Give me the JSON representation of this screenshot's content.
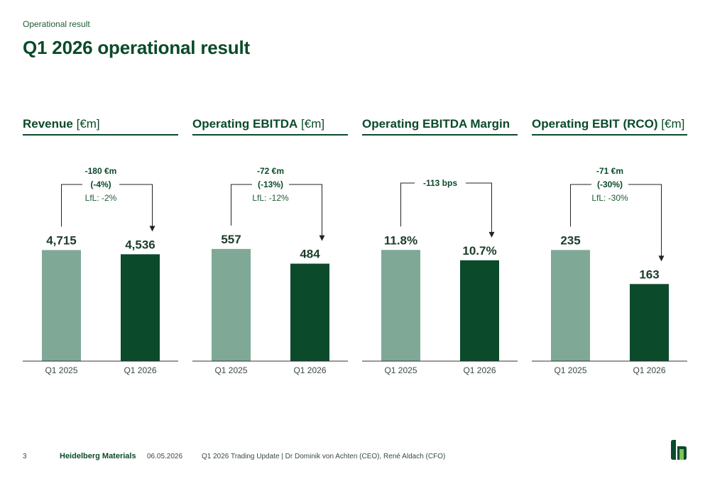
{
  "header": {
    "section": "Operational result",
    "title": "Q1 2026 operational result"
  },
  "colors": {
    "prior": "#7fa996",
    "current": "#0b4a2a",
    "text": "#0b4a2a"
  },
  "chart_data": [
    {
      "type": "bar",
      "title_strong": "Revenue",
      "title_unit": " [€m]",
      "categories": [
        "Q1 2025",
        "Q1 2026"
      ],
      "values": [
        4715,
        4536
      ],
      "value_labels": [
        "4,715",
        "4,536"
      ],
      "annotation": [
        "-180 €m",
        "(-4%)",
        "LfL: -2%"
      ],
      "ylim": [
        0,
        5300
      ]
    },
    {
      "type": "bar",
      "title_strong": "Operating EBITDA",
      "title_unit": " [€m]",
      "categories": [
        "Q1 2025",
        "Q1 2026"
      ],
      "values": [
        557,
        484
      ],
      "value_labels": [
        "557",
        "484"
      ],
      "annotation": [
        "-72 €m",
        "(-13%)",
        "LfL: -12%"
      ],
      "ylim": [
        0,
        620
      ]
    },
    {
      "type": "bar",
      "title_strong": "Operating EBITDA Margin",
      "title_unit": "",
      "categories": [
        "Q1 2025",
        "Q1 2026"
      ],
      "values": [
        11.8,
        10.7
      ],
      "value_labels": [
        "11.8%",
        "10.7%"
      ],
      "annotation": [
        "-113 bps"
      ],
      "ylim": [
        0,
        13.25
      ]
    },
    {
      "type": "bar",
      "title_strong": "Operating EBIT (RCO)",
      "title_unit": " [€m]",
      "categories": [
        "Q1 2025",
        "Q1 2026"
      ],
      "values": [
        235,
        163
      ],
      "value_labels": [
        "235",
        "163"
      ],
      "annotation": [
        "-71 €m",
        "(-30%)",
        "LfL: -30%"
      ],
      "ylim": [
        0,
        264
      ]
    }
  ],
  "footer": {
    "page": "3",
    "brand": "Heidelberg Materials",
    "date": "06.05.2026",
    "event": "Q1 2026 Trading Update | Dr Dominik von Achten (CEO), René Aldach (CFO)"
  }
}
